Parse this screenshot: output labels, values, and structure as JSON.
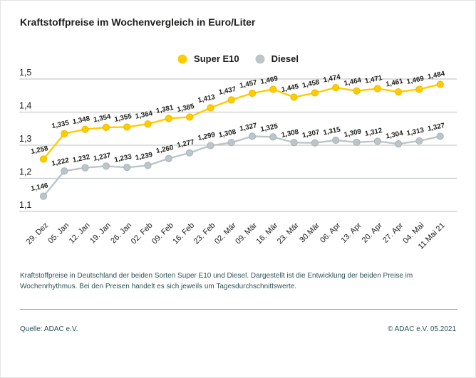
{
  "header": {
    "title": "Kraftstoffpreise im Wochenvergleich in Euro/Liter"
  },
  "colors": {
    "super_e10": "#FFCC00",
    "super_e10_stroke": "#EDB900",
    "diesel": "#BCC5C7",
    "diesel_stroke": "#A9B3B6",
    "grid": "#C6CBCC",
    "text_dark": "#1D1D1B",
    "text_teal": "#2E5357"
  },
  "chart_data": {
    "type": "line",
    "title": "Kraftstoffpreise im Wochenvergleich in Euro/Liter",
    "xlabel": "",
    "ylabel": "Euro/Liter",
    "ylim": [
      1.1,
      1.5
    ],
    "grid": true,
    "legend_position": "top-center",
    "yticks": [
      1.5,
      1.4,
      1.3,
      1.2,
      1.1
    ],
    "ytick_labels": [
      "1,5",
      "1,4",
      "1,3",
      "1,2",
      "1,1"
    ],
    "categories": [
      "29. Dez",
      "05. Jan",
      "12. Jan",
      "19. Jan",
      "26. Jan",
      "02. Feb",
      "09. Feb",
      "16. Feb",
      "23. Feb",
      "02. Mär",
      "09. Mär",
      "16. Mär",
      "23. Mär",
      "30.Mär",
      "06. Apr",
      "13. Apr",
      "20. Apr",
      "27. Apr",
      "04. Mai",
      "11.Mai 21"
    ],
    "series": [
      {
        "name": "Diesel",
        "color": "#BCC5C7",
        "stroke": "#A9B3B6",
        "values": [
          1.146,
          1.222,
          1.232,
          1.237,
          1.233,
          1.239,
          1.26,
          1.277,
          1.299,
          1.308,
          1.327,
          1.325,
          1.308,
          1.307,
          1.315,
          1.309,
          1.312,
          1.304,
          1.313,
          1.327
        ],
        "labels": [
          "1,146",
          "1,222",
          "1,232",
          "1,237",
          "1,233",
          "1,239",
          "1,260",
          "1,277",
          "1,299",
          "1,308",
          "1,327",
          "1,325",
          "1,308",
          "1,307",
          "1,315",
          "1,309",
          "1,312",
          "1,304",
          "1,313",
          "1,327"
        ]
      },
      {
        "name": "Super E10",
        "color": "#FFCC00",
        "stroke": "#EDB900",
        "values": [
          1.258,
          1.335,
          1.348,
          1.354,
          1.355,
          1.364,
          1.381,
          1.385,
          1.413,
          1.437,
          1.457,
          1.469,
          1.445,
          1.458,
          1.474,
          1.464,
          1.471,
          1.461,
          1.469,
          1.484
        ],
        "labels": [
          "1,258",
          "1,335",
          "1,348",
          "1,354",
          "1,355",
          "1,364",
          "1,381",
          "1,385",
          "1,413",
          "1,437",
          "1,457",
          "1,469",
          "1,445",
          "1,458",
          "1,474",
          "1,464",
          "1,471",
          "1,461",
          "1,469",
          "1,484"
        ]
      }
    ]
  },
  "legend": {
    "super_e10_label": "Super E10",
    "diesel_label": "Diesel"
  },
  "description": {
    "text": "Kraftstoffpreise in Deutschland der beiden Sorten Super E10 und Diesel. Dargestellt ist die Entwicklung der beiden Preise im Wochenrhythmus. Bei den Preisen handelt es sich jeweils um Tagesdurchschnittswerte."
  },
  "footer": {
    "source": "Quelle: ADAC e.V.",
    "copyright": "© ADAC e.V. 05.2021"
  }
}
